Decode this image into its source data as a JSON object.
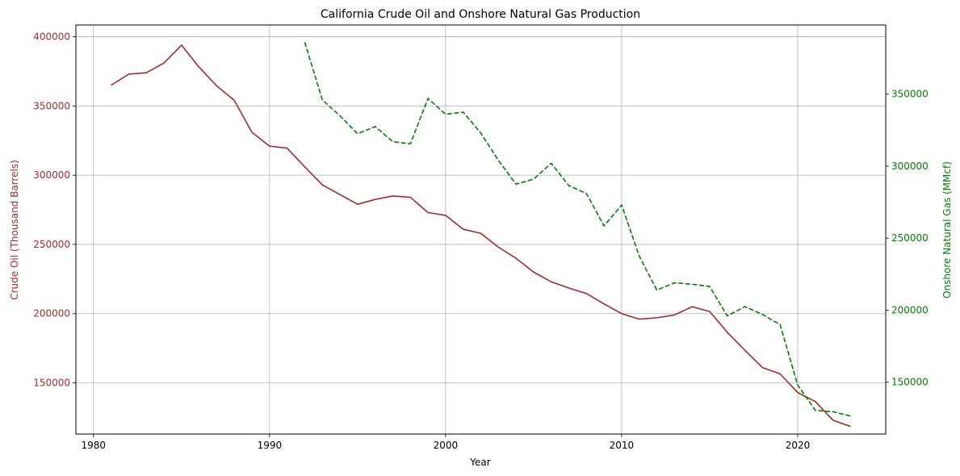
{
  "chart_data": {
    "type": "line",
    "title": "California Crude Oil and Onshore Natural Gas Production",
    "xlabel": "Year",
    "xlim": [
      1979,
      2025
    ],
    "xticks": [
      1980,
      1990,
      2000,
      2010,
      2020
    ],
    "grid": true,
    "y_left": {
      "label": "Crude Oil (Thousand Barrels)",
      "color": "#a52a2a",
      "lim": [
        113000,
        408500
      ],
      "ticks": [
        150000,
        200000,
        250000,
        300000,
        350000,
        400000
      ]
    },
    "y_right": {
      "label": "Onshore Natural Gas (MMcf)",
      "color": "#008000",
      "lim": [
        114000,
        398000
      ],
      "ticks": [
        150000,
        200000,
        250000,
        300000,
        350000
      ]
    },
    "series": [
      {
        "axis": "left",
        "color": "#a52a2a",
        "style": "solid",
        "x": [
          1981,
          1982,
          1983,
          1984,
          1985,
          1986,
          1987,
          1988,
          1989,
          1990,
          1991,
          1992,
          1993,
          1994,
          1995,
          1996,
          1997,
          1998,
          1999,
          2000,
          2001,
          2002,
          2003,
          2004,
          2005,
          2006,
          2007,
          2008,
          2009,
          2010,
          2011,
          2012,
          2013,
          2014,
          2015,
          2016,
          2017,
          2018,
          2019,
          2020,
          2021,
          2022,
          2023
        ],
        "values": [
          365000,
          373000,
          374000,
          381000,
          394000,
          378000,
          364500,
          354000,
          331000,
          321000,
          319500,
          306000,
          293000,
          286000,
          279000,
          282500,
          285000,
          284000,
          273000,
          271000,
          261000,
          258000,
          248000,
          240000,
          230000,
          223000,
          218500,
          214500,
          207000,
          200000,
          196000,
          197000,
          199000,
          205000,
          201500,
          186500,
          173500,
          161000,
          156500,
          143000,
          136500,
          123000,
          118500
        ]
      },
      {
        "axis": "right",
        "color": "#008000",
        "style": "dashed",
        "x": [
          1992,
          1993,
          1994,
          1995,
          1996,
          1997,
          1998,
          1999,
          2000,
          2001,
          2002,
          2003,
          2004,
          2005,
          2006,
          2007,
          2008,
          2009,
          2010,
          2011,
          2012,
          2013,
          2014,
          2015,
          2016,
          2017,
          2018,
          2019,
          2020,
          2021,
          2022,
          2023
        ],
        "values": [
          386000,
          346000,
          335000,
          322500,
          327500,
          317000,
          315500,
          347000,
          336000,
          337500,
          323000,
          304000,
          287500,
          291000,
          302000,
          286500,
          281000,
          258500,
          273000,
          237500,
          214000,
          219000,
          218000,
          216500,
          196000,
          202500,
          197000,
          190000,
          148000,
          130500,
          129500,
          126500
        ]
      }
    ]
  }
}
